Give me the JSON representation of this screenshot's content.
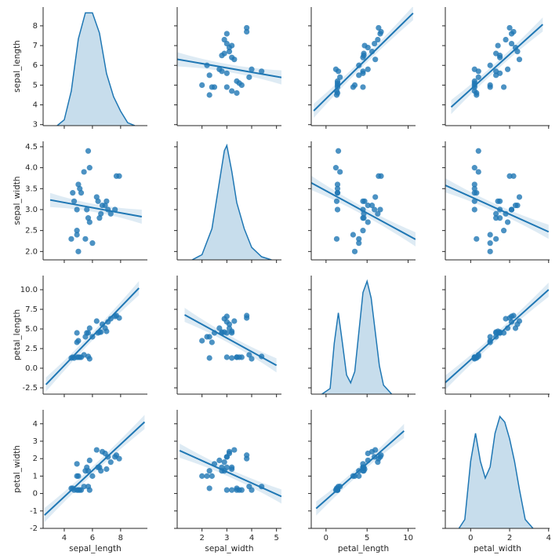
{
  "chart_data": [
    {
      "type": "kde",
      "x": [
        3.5,
        4.0,
        4.5,
        5.0,
        5.5,
        6.0,
        6.5,
        7.0,
        7.5,
        8.0,
        8.5,
        9.0
      ],
      "density": [
        0,
        0.02,
        0.12,
        0.3,
        0.39,
        0.39,
        0.32,
        0.18,
        0.1,
        0.05,
        0.01,
        0
      ],
      "density_lim": [
        0,
        0.41
      ],
      "color": "#1f77b4",
      "xlim": [
        2.5,
        9.9
      ],
      "xticks": [
        4,
        6,
        8
      ],
      "ylim": [
        2.95,
        8.95
      ],
      "yticks": [
        3,
        4,
        5,
        6,
        7,
        8
      ],
      "ylabel": "sepal_length"
    },
    {
      "type": "scatter",
      "color": "#1f77b4",
      "x": [
        3.5,
        3.0,
        3.2,
        3.6,
        3.9,
        3.4,
        4.0,
        4.4,
        2.3,
        3.4,
        3.2,
        3.2,
        2.3,
        2.8,
        2.8,
        2.4,
        2.9,
        2.0,
        2.2,
        3.0,
        3.3,
        2.7,
        3.0,
        3.0,
        2.5,
        2.9,
        3.8,
        3.1,
        3.1,
        3.8
      ],
      "y": [
        5.1,
        4.9,
        4.7,
        5.0,
        5.4,
        4.6,
        5.8,
        5.7,
        4.5,
        5.2,
        7.0,
        6.4,
        5.5,
        6.5,
        5.7,
        4.9,
        6.6,
        5.0,
        6.0,
        5.6,
        6.3,
        5.8,
        7.1,
        7.6,
        4.9,
        7.3,
        7.7,
        6.7,
        6.9,
        7.9
      ],
      "fit": {
        "x": [
          1.0,
          5.2
        ],
        "y": [
          6.31,
          5.39
        ]
      },
      "xlim": [
        1.0,
        5.2
      ],
      "xticks": [
        2,
        3,
        4,
        5
      ],
      "ylim": [
        2.95,
        8.95
      ],
      "yticks": [
        3,
        4,
        5,
        6,
        7,
        8
      ]
    },
    {
      "type": "scatter",
      "color": "#1f77b4",
      "x": [
        1.4,
        1.4,
        1.3,
        1.4,
        1.7,
        1.4,
        1.2,
        1.5,
        1.3,
        1.4,
        4.7,
        4.5,
        4.0,
        4.6,
        4.5,
        3.3,
        4.6,
        3.5,
        4.0,
        4.5,
        6.0,
        5.1,
        5.9,
        6.6,
        4.5,
        6.3,
        6.7,
        5.6,
        5.1,
        6.4
      ],
      "y": [
        5.1,
        4.9,
        4.7,
        5.0,
        5.4,
        4.6,
        5.8,
        5.7,
        4.5,
        5.2,
        7.0,
        6.4,
        5.5,
        6.5,
        5.7,
        4.9,
        6.6,
        5.0,
        6.0,
        5.6,
        6.3,
        5.8,
        7.1,
        7.6,
        4.9,
        7.3,
        7.7,
        6.7,
        6.9,
        7.9
      ],
      "fit": {
        "x": [
          -1.5,
          10.6
        ],
        "y": [
          3.7,
          8.64
        ]
      },
      "xlim": [
        -1.8,
        10.9
      ],
      "xticks": [
        0,
        5,
        10
      ],
      "ylim": [
        2.95,
        8.95
      ],
      "yticks": [
        3,
        4,
        5,
        6,
        7,
        8
      ]
    },
    {
      "type": "scatter",
      "color": "#1f77b4",
      "x": [
        0.2,
        0.2,
        0.2,
        0.2,
        0.4,
        0.3,
        0.2,
        0.4,
        0.3,
        0.2,
        1.4,
        1.5,
        1.3,
        1.5,
        1.3,
        1.0,
        1.3,
        1.0,
        1.0,
        1.5,
        2.5,
        1.9,
        2.1,
        2.1,
        1.7,
        1.8,
        2.2,
        2.4,
        2.3,
        2.0
      ],
      "y": [
        5.1,
        4.9,
        4.7,
        5.0,
        5.4,
        4.6,
        5.8,
        5.7,
        4.5,
        5.2,
        7.0,
        6.4,
        5.5,
        6.5,
        5.7,
        4.9,
        6.6,
        5.0,
        6.0,
        5.6,
        6.3,
        5.8,
        7.1,
        7.6,
        4.9,
        7.3,
        7.7,
        6.7,
        6.9,
        7.9
      ],
      "fit": {
        "x": [
          -1.0,
          3.7
        ],
        "y": [
          3.89,
          8.07
        ]
      },
      "xlim": [
        -1.3,
        4.05
      ],
      "xticks": [
        0,
        2,
        4
      ],
      "ylim": [
        2.95,
        8.95
      ],
      "yticks": [
        3,
        4,
        5,
        6,
        7,
        8
      ]
    },
    {
      "type": "scatter",
      "color": "#1f77b4",
      "x": [
        5.1,
        4.9,
        4.7,
        5.0,
        5.4,
        4.6,
        5.8,
        5.7,
        4.5,
        5.2,
        7.0,
        6.4,
        5.5,
        6.5,
        5.7,
        4.9,
        6.6,
        5.0,
        6.0,
        5.6,
        6.3,
        5.8,
        7.1,
        7.6,
        4.9,
        7.3,
        7.7,
        6.7,
        6.9,
        7.9
      ],
      "y": [
        3.5,
        3.0,
        3.2,
        3.6,
        3.9,
        3.4,
        4.0,
        4.4,
        2.3,
        3.4,
        3.2,
        3.2,
        2.3,
        2.8,
        2.8,
        2.4,
        2.9,
        2.0,
        2.2,
        3.0,
        3.3,
        2.7,
        3.0,
        3.0,
        2.5,
        2.9,
        3.8,
        3.1,
        3.1,
        3.8
      ],
      "fit": {
        "x": [
          3.0,
          9.5
        ],
        "y": [
          3.23,
          2.83
        ]
      },
      "xlim": [
        2.5,
        9.9
      ],
      "xticks": [
        4,
        6,
        8
      ],
      "ylim": [
        1.8,
        4.63
      ],
      "yticks": [
        {
          "value": 2,
          "label": "2.0"
        },
        2.5,
        {
          "value": 3,
          "label": "3.0"
        },
        3.5,
        {
          "value": 4,
          "label": "4.0"
        },
        4.5
      ],
      "ylabel": "sepal_width"
    },
    {
      "type": "kde",
      "x": [
        1.6,
        2.0,
        2.4,
        2.7,
        2.9,
        3.0,
        3.2,
        3.4,
        3.7,
        4.0,
        4.4,
        4.8
      ],
      "density": [
        0,
        0.05,
        0.3,
        0.75,
        1.05,
        1.1,
        0.85,
        0.55,
        0.3,
        0.12,
        0.03,
        0
      ],
      "density_lim": [
        0,
        1.14
      ],
      "color": "#1f77b4",
      "xlim": [
        1.0,
        5.2
      ],
      "xticks": [
        2,
        3,
        4,
        5
      ],
      "ylim": [
        1.8,
        4.63
      ],
      "yticks": [
        2,
        2.5,
        3,
        3.5,
        4,
        4.5
      ]
    },
    {
      "type": "scatter",
      "color": "#1f77b4",
      "x": [
        1.4,
        1.4,
        1.3,
        1.4,
        1.7,
        1.4,
        1.2,
        1.5,
        1.3,
        1.4,
        4.7,
        4.5,
        4.0,
        4.6,
        4.5,
        3.3,
        4.6,
        3.5,
        4.0,
        4.5,
        6.0,
        5.1,
        5.9,
        6.6,
        4.5,
        6.3,
        6.7,
        5.6,
        5.1,
        6.4
      ],
      "y": [
        3.5,
        3.0,
        3.2,
        3.6,
        3.9,
        3.4,
        4.0,
        4.4,
        2.3,
        3.4,
        3.2,
        3.2,
        2.3,
        2.8,
        2.8,
        2.4,
        2.9,
        2.0,
        2.2,
        3.0,
        3.3,
        2.7,
        3.0,
        3.0,
        2.5,
        2.9,
        3.8,
        3.1,
        3.1,
        3.8
      ],
      "fit": {
        "x": [
          -1.8,
          10.9
        ],
        "y": [
          3.64,
          2.29
        ]
      },
      "xlim": [
        -1.8,
        10.9
      ],
      "xticks": [
        0,
        5,
        10
      ],
      "ylim": [
        1.8,
        4.63
      ],
      "yticks": [
        2,
        2.5,
        3,
        3.5,
        4,
        4.5
      ]
    },
    {
      "type": "scatter",
      "color": "#1f77b4",
      "x": [
        0.2,
        0.2,
        0.2,
        0.2,
        0.4,
        0.3,
        0.2,
        0.4,
        0.3,
        0.2,
        1.4,
        1.5,
        1.3,
        1.5,
        1.3,
        1.0,
        1.3,
        1.0,
        1.0,
        1.5,
        2.5,
        1.9,
        2.1,
        2.1,
        1.7,
        1.8,
        2.2,
        2.4,
        2.3,
        2.0
      ],
      "y": [
        3.5,
        3.0,
        3.2,
        3.6,
        3.9,
        3.4,
        4.0,
        4.4,
        2.3,
        3.4,
        3.2,
        3.2,
        2.3,
        2.8,
        2.8,
        2.4,
        2.9,
        2.0,
        2.2,
        3.0,
        3.3,
        2.7,
        3.0,
        3.0,
        2.5,
        2.9,
        3.8,
        3.1,
        3.1,
        3.8
      ],
      "fit": {
        "x": [
          -1.3,
          4.0
        ],
        "y": [
          3.58,
          2.47
        ]
      },
      "xlim": [
        -1.3,
        4.05
      ],
      "xticks": [
        0,
        2,
        4
      ],
      "ylim": [
        1.8,
        4.63
      ],
      "yticks": [
        2,
        2.5,
        3,
        3.5,
        4,
        4.5
      ]
    },
    {
      "type": "scatter",
      "color": "#1f77b4",
      "x": [
        5.1,
        4.9,
        4.7,
        5.0,
        5.4,
        4.6,
        5.8,
        5.7,
        4.5,
        5.2,
        7.0,
        6.4,
        5.5,
        6.5,
        5.7,
        4.9,
        6.6,
        5.0,
        6.0,
        5.6,
        6.3,
        5.8,
        7.1,
        7.6,
        4.9,
        7.3,
        7.7,
        6.7,
        6.9,
        7.9
      ],
      "y": [
        1.4,
        1.4,
        1.3,
        1.4,
        1.7,
        1.4,
        1.2,
        1.5,
        1.3,
        1.4,
        4.7,
        4.5,
        4.0,
        4.6,
        4.5,
        3.3,
        4.6,
        3.5,
        4.0,
        4.5,
        6.0,
        5.1,
        5.9,
        6.6,
        4.5,
        6.3,
        6.7,
        5.6,
        5.1,
        6.4
      ],
      "fit": {
        "x": [
          2.7,
          9.3
        ],
        "y": [
          -2.08,
          10.2
        ]
      },
      "xlim": [
        2.5,
        9.9
      ],
      "xticks": [
        4,
        6,
        8
      ],
      "ylim": [
        -3.3,
        11.8
      ],
      "yticks": [
        -2.5,
        {
          "value": 0,
          "label": "0.0"
        },
        2.5,
        {
          "value": 5,
          "label": "5.0"
        },
        7.5,
        {
          "value": 10,
          "label": "10.0"
        }
      ],
      "ylabel": "petal_length"
    },
    {
      "type": "scatter",
      "color": "#1f77b4",
      "x": [
        3.5,
        3.0,
        3.2,
        3.6,
        3.9,
        3.4,
        4.0,
        4.4,
        2.3,
        3.4,
        3.2,
        3.2,
        2.3,
        2.8,
        2.8,
        2.4,
        2.9,
        2.0,
        2.2,
        3.0,
        3.3,
        2.7,
        3.0,
        3.0,
        2.5,
        2.9,
        3.8,
        3.1,
        3.1,
        3.8
      ],
      "y": [
        1.4,
        1.4,
        1.3,
        1.4,
        1.7,
        1.4,
        1.2,
        1.5,
        1.3,
        1.4,
        4.7,
        4.5,
        4.0,
        4.6,
        4.5,
        3.3,
        4.6,
        3.5,
        4.0,
        4.5,
        6.0,
        5.1,
        5.9,
        6.6,
        4.5,
        6.3,
        6.7,
        5.6,
        5.1,
        6.4
      ],
      "fit": {
        "x": [
          1.3,
          5.0
        ],
        "y": [
          6.8,
          0.36
        ]
      },
      "xlim": [
        1.0,
        5.2
      ],
      "xticks": [
        2,
        3,
        4,
        5
      ],
      "ylim": [
        -3.3,
        11.8
      ],
      "yticks": [
        -2.5,
        0,
        2.5,
        5,
        7.5,
        10
      ]
    },
    {
      "type": "kde",
      "x": [
        -0.5,
        0.5,
        1.0,
        1.5,
        2.0,
        2.5,
        3.0,
        3.5,
        4.0,
        4.5,
        5.0,
        5.5,
        6.0,
        6.5,
        7.0,
        8.0
      ],
      "density": [
        0,
        0.05,
        0.45,
        0.72,
        0.45,
        0.17,
        0.1,
        0.2,
        0.55,
        0.9,
        1.0,
        0.85,
        0.55,
        0.25,
        0.08,
        0
      ],
      "density_lim": [
        0,
        1.05
      ],
      "color": "#1f77b4",
      "xlim": [
        -1.8,
        10.9
      ],
      "xticks": [
        0,
        5,
        10
      ],
      "ylim": [
        -3.3,
        11.8
      ],
      "yticks": [
        -2.5,
        0,
        2.5,
        5,
        7.5,
        10
      ]
    },
    {
      "type": "scatter",
      "color": "#1f77b4",
      "x": [
        0.2,
        0.2,
        0.2,
        0.2,
        0.4,
        0.3,
        0.2,
        0.4,
        0.3,
        0.2,
        1.4,
        1.5,
        1.3,
        1.5,
        1.3,
        1.0,
        1.3,
        1.0,
        1.0,
        1.5,
        2.5,
        1.9,
        2.1,
        2.1,
        1.7,
        1.8,
        2.2,
        2.4,
        2.3,
        2.0
      ],
      "y": [
        1.4,
        1.4,
        1.3,
        1.4,
        1.7,
        1.4,
        1.2,
        1.5,
        1.3,
        1.4,
        4.7,
        4.5,
        4.0,
        4.6,
        4.5,
        3.3,
        4.6,
        3.5,
        4.0,
        4.5,
        6.0,
        5.1,
        5.9,
        6.6,
        4.5,
        6.3,
        6.7,
        5.6,
        5.1,
        6.4
      ],
      "fit": {
        "x": [
          -1.3,
          4.0
        ],
        "y": [
          -1.82,
          10.0
        ]
      },
      "xlim": [
        -1.3,
        4.05
      ],
      "xticks": [
        0,
        2,
        4
      ],
      "ylim": [
        -3.3,
        11.8
      ],
      "yticks": [
        -2.5,
        0,
        2.5,
        5,
        7.5,
        10
      ]
    },
    {
      "type": "scatter",
      "color": "#1f77b4",
      "x": [
        5.1,
        4.9,
        4.7,
        5.0,
        5.4,
        4.6,
        5.8,
        5.7,
        4.5,
        5.2,
        7.0,
        6.4,
        5.5,
        6.5,
        5.7,
        4.9,
        6.6,
        5.0,
        6.0,
        5.6,
        6.3,
        5.8,
        7.1,
        7.6,
        4.9,
        7.3,
        7.7,
        6.7,
        6.9,
        7.9
      ],
      "y": [
        0.2,
        0.2,
        0.2,
        0.2,
        0.4,
        0.3,
        0.2,
        0.4,
        0.3,
        0.2,
        1.4,
        1.5,
        1.3,
        1.5,
        1.3,
        1.0,
        1.3,
        1.0,
        1.0,
        1.5,
        2.5,
        1.9,
        2.1,
        2.1,
        1.7,
        1.8,
        2.2,
        2.4,
        2.3,
        2.0
      ],
      "fit": {
        "x": [
          2.6,
          9.7
        ],
        "y": [
          -1.24,
          4.1
        ]
      },
      "xlim": [
        2.5,
        9.9
      ],
      "xticks": [
        4,
        6,
        8
      ],
      "ylim": [
        -2,
        4.8
      ],
      "yticks": [
        -2,
        -1,
        0,
        1,
        2,
        3,
        4
      ],
      "xlabel": "sepal_length",
      "ylabel": "petal_width"
    },
    {
      "type": "scatter",
      "color": "#1f77b4",
      "x": [
        3.5,
        3.0,
        3.2,
        3.6,
        3.9,
        3.4,
        4.0,
        4.4,
        2.3,
        3.4,
        3.2,
        3.2,
        2.3,
        2.8,
        2.8,
        2.4,
        2.9,
        2.0,
        2.2,
        3.0,
        3.3,
        2.7,
        3.0,
        3.0,
        2.5,
        2.9,
        3.8,
        3.1,
        3.1,
        3.8
      ],
      "y": [
        0.2,
        0.2,
        0.2,
        0.2,
        0.4,
        0.3,
        0.2,
        0.4,
        0.3,
        0.2,
        1.4,
        1.5,
        1.3,
        1.5,
        1.3,
        1.0,
        1.3,
        1.0,
        1.0,
        1.5,
        2.5,
        1.9,
        2.1,
        2.1,
        1.7,
        1.8,
        2.2,
        2.4,
        2.3,
        2.0
      ],
      "fit": {
        "x": [
          1.1,
          5.2
        ],
        "y": [
          2.46,
          -0.17
        ]
      },
      "xlim": [
        1.0,
        5.2
      ],
      "xticks": [
        2,
        3,
        4,
        5
      ],
      "ylim": [
        -2,
        4.8
      ],
      "yticks": [
        -2,
        -1,
        0,
        1,
        2,
        3,
        4
      ],
      "xlabel": "sepal_width"
    },
    {
      "type": "scatter",
      "color": "#1f77b4",
      "x": [
        1.4,
        1.4,
        1.3,
        1.4,
        1.7,
        1.4,
        1.2,
        1.5,
        1.3,
        1.4,
        4.7,
        4.5,
        4.0,
        4.6,
        4.5,
        3.3,
        4.6,
        3.5,
        4.0,
        4.5,
        6.0,
        5.1,
        5.9,
        6.6,
        4.5,
        6.3,
        6.7,
        5.6,
        5.1,
        6.4
      ],
      "y": [
        0.2,
        0.2,
        0.2,
        0.2,
        0.4,
        0.3,
        0.2,
        0.4,
        0.3,
        0.2,
        1.4,
        1.5,
        1.3,
        1.5,
        1.3,
        1.0,
        1.3,
        1.0,
        1.0,
        1.5,
        2.5,
        1.9,
        2.1,
        2.1,
        1.7,
        1.8,
        2.2,
        2.4,
        2.3,
        2.0
      ],
      "fit": {
        "x": [
          -1.2,
          9.5
        ],
        "y": [
          -0.86,
          3.59
        ]
      },
      "xlim": [
        -1.8,
        10.9
      ],
      "xticks": [
        0,
        5,
        10
      ],
      "ylim": [
        -2,
        4.8
      ],
      "yticks": [
        -2,
        -1,
        0,
        1,
        2,
        3,
        4
      ],
      "xlabel": "petal_length"
    },
    {
      "type": "kde",
      "x": [
        -0.6,
        -0.3,
        0,
        0.25,
        0.5,
        0.75,
        1.0,
        1.25,
        1.5,
        1.75,
        2.0,
        2.25,
        2.5,
        2.8,
        3.2
      ],
      "density": [
        0,
        0.08,
        0.6,
        0.85,
        0.6,
        0.45,
        0.55,
        0.85,
        1.0,
        0.95,
        0.8,
        0.6,
        0.35,
        0.08,
        0
      ],
      "density_lim": [
        0,
        1.06
      ],
      "color": "#1f77b4",
      "xlim": [
        -1.3,
        4.05
      ],
      "xticks": [
        0,
        2,
        4
      ],
      "ylim": [
        -2,
        4.8
      ],
      "yticks": [
        -2,
        -1,
        0,
        1,
        2,
        3,
        4
      ],
      "xlabel": "petal_width"
    }
  ]
}
